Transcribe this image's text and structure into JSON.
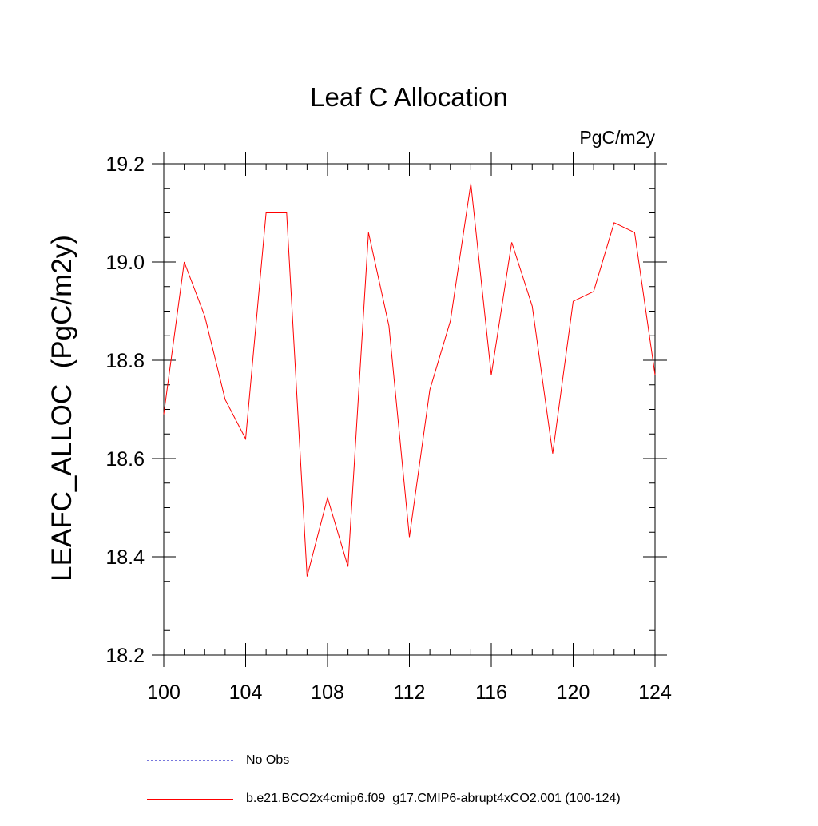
{
  "chart_data": {
    "type": "line",
    "title": "Leaf C Allocation",
    "units": "PgC/m2y",
    "ylabel": "LEAFC_ALLOC  (PgC/m2y)",
    "xlabel": "",
    "xlim": [
      100,
      124
    ],
    "ylim": [
      18.2,
      19.2
    ],
    "x_ticks": [
      "100",
      "104",
      "108",
      "112",
      "116",
      "120",
      "124"
    ],
    "y_ticks": [
      "18.2",
      "18.4",
      "18.6",
      "18.8",
      "19.0",
      "19.2"
    ],
    "x": [
      100,
      101,
      102,
      103,
      104,
      105,
      106,
      107,
      108,
      109,
      110,
      111,
      112,
      113,
      114,
      115,
      116,
      117,
      118,
      119,
      120,
      121,
      122,
      123,
      124
    ],
    "series": [
      {
        "name": "b.e21.BCO2x4cmip6.f09_g17.CMIP6-abrupt4xCO2.001 (100-124)",
        "color": "#ff0000",
        "values": [
          18.69,
          19.0,
          18.89,
          18.72,
          18.64,
          19.1,
          19.1,
          18.36,
          18.52,
          18.38,
          19.06,
          18.87,
          18.44,
          18.74,
          18.88,
          19.16,
          18.77,
          19.04,
          18.91,
          18.61,
          18.92,
          18.94,
          19.08,
          19.06,
          18.77
        ]
      }
    ],
    "legend": [
      {
        "label": "No Obs",
        "color": "#7777dd",
        "style": "dashed"
      },
      {
        "label": "b.e21.BCO2x4cmip6.f09_g17.CMIP6-abrupt4xCO2.001 (100-124)",
        "color": "#ff0000",
        "style": "solid"
      }
    ],
    "grid": false,
    "legend_position": "bottom-left"
  }
}
